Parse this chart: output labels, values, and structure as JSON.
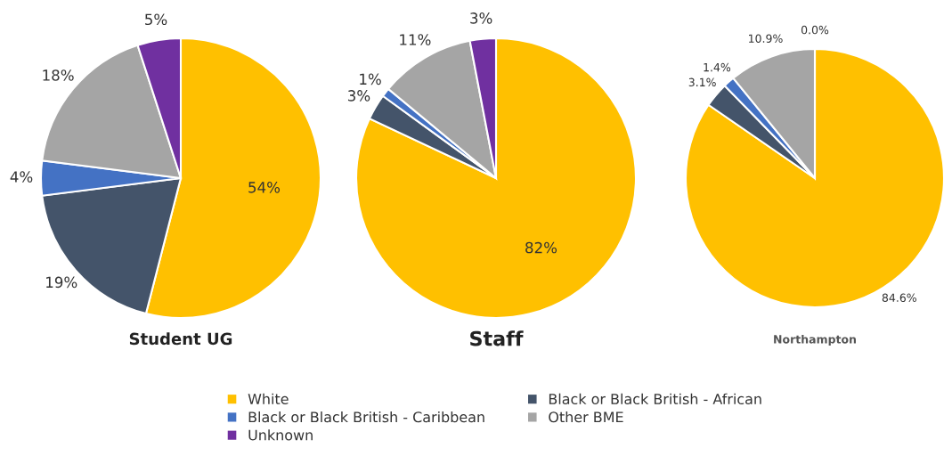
{
  "chart_data": [
    {
      "type": "pie",
      "title": "Student UG",
      "categories": [
        "White",
        "Black or Black British - African",
        "Black or Black British - Caribbean",
        "Other BME",
        "Unknown"
      ],
      "values": [
        54,
        19,
        4,
        18,
        5
      ],
      "colors": [
        "#ffc000",
        "#44546a",
        "#4472c4",
        "#a5a5a5",
        "#7030a0"
      ],
      "value_labels": [
        "54%",
        "19%",
        "4%",
        "18%",
        "5%"
      ],
      "legend": "bottom"
    },
    {
      "type": "pie",
      "title": "Staff",
      "values": [
        82,
        3,
        1,
        11,
        3
      ],
      "colors": [
        "#ffc000",
        "#44546a",
        "#4472c4",
        "#a5a5a5",
        "#7030a0"
      ],
      "value_labels": [
        "82%",
        "3%",
        "1%",
        "11%",
        "3%"
      ]
    },
    {
      "type": "pie",
      "title": "Northampton",
      "values": [
        84.6,
        3.1,
        1.4,
        10.9,
        0.0
      ],
      "colors": [
        "#ffc000",
        "#44546a",
        "#4472c4",
        "#a5a5a5",
        "#7030a0"
      ],
      "value_labels": [
        "84.6%",
        "3.1%",
        "1.4%",
        "10.9%",
        "0.0%"
      ]
    }
  ]
}
